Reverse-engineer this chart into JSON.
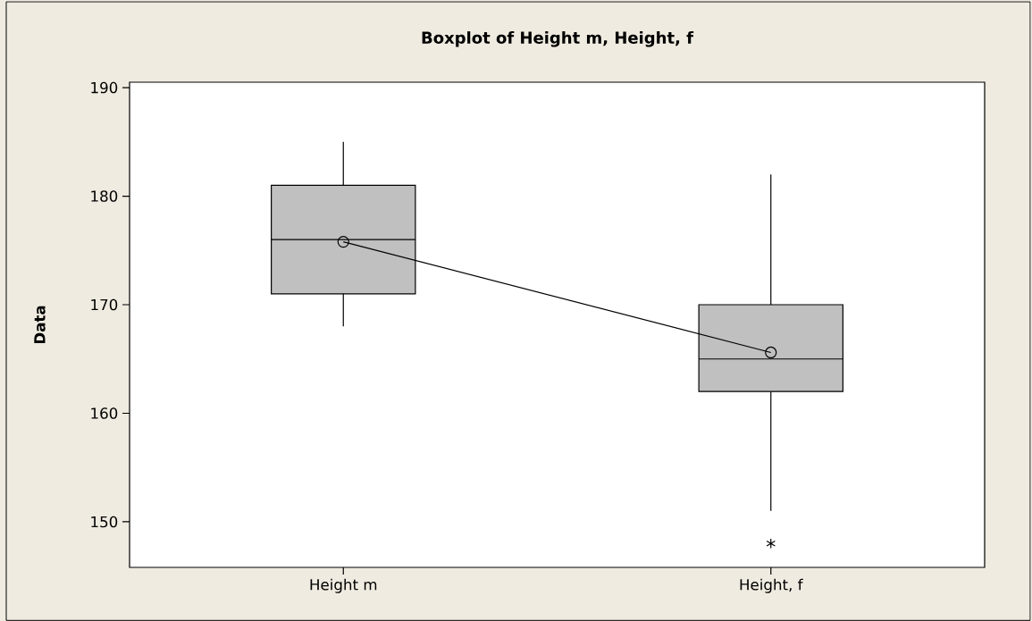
{
  "chart_data": {
    "type": "box",
    "title": "Boxplot of Height m, Height,  f",
    "ylabel": "Data",
    "categories": [
      "Height m",
      "Height,  f"
    ],
    "boxes": [
      {
        "low": 168,
        "q1": 171,
        "median": 176,
        "q3": 181,
        "high": 185
      },
      {
        "low": 151,
        "q1": 162,
        "median": 165,
        "q3": 170,
        "high": 182,
        "outliers": [
          148
        ]
      }
    ],
    "series": [
      {
        "type": "line",
        "values": [
          175.8,
          165.6
        ],
        "color": "#000000",
        "marker": "circle"
      }
    ],
    "color": "#c0c0c0",
    "ylim": [
      145.8,
      190.5
    ],
    "yticks": [
      150,
      160,
      170,
      180,
      190
    ],
    "grid": false
  }
}
